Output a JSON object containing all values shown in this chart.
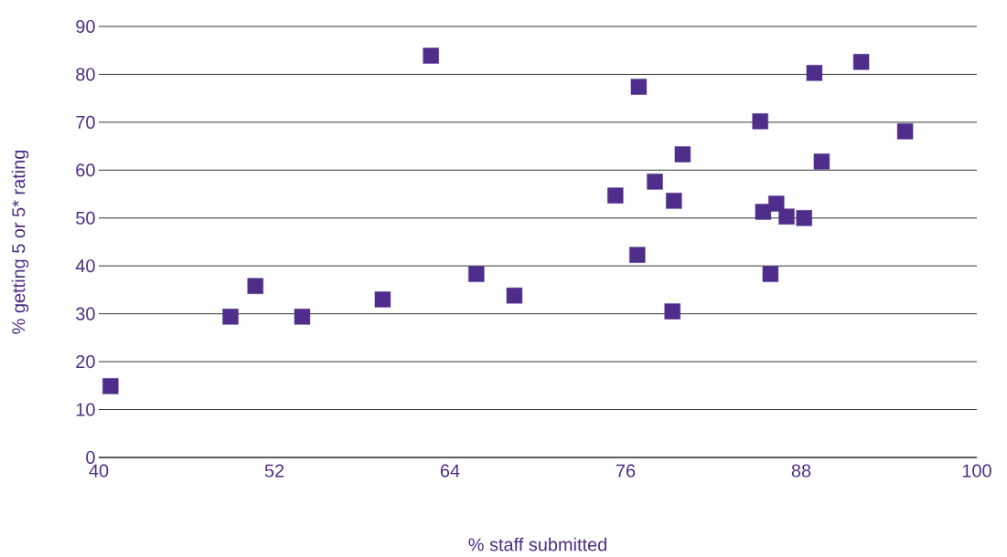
{
  "chart_data": {
    "type": "scatter",
    "xlabel": "% staff submitted",
    "ylabel": "% getting 5 or 5* rating",
    "series": [
      {
        "color": "#4f2d8a",
        "x": [
          40.8,
          49,
          50.7,
          53.9,
          59.4,
          62.7,
          65.8,
          68.4,
          75.3,
          76.8,
          76.9,
          78,
          79.2,
          79.3,
          79.9,
          85.2,
          85.4,
          85.9,
          86.3,
          87,
          88.2,
          88.9,
          89.4,
          92.1,
          95.1
        ],
        "values": [
          14.9,
          29.4,
          35.8,
          29.4,
          33.0,
          83.9,
          38.3,
          33.8,
          54.7,
          42.3,
          77.4,
          57.6,
          30.5,
          53.6,
          63.3,
          70.2,
          51.3,
          38.3,
          53.0,
          50.3,
          50.0,
          80.3,
          61.8,
          82.6,
          68.1
        ]
      }
    ],
    "xlim": [
      40,
      100
    ],
    "xticks": [
      40,
      52,
      64,
      76,
      88,
      100
    ],
    "ylim": [
      0,
      90
    ],
    "yticks": [
      0,
      10,
      20,
      30,
      40,
      50,
      60,
      70,
      80,
      90
    ],
    "grid": "y",
    "marker": "square"
  }
}
